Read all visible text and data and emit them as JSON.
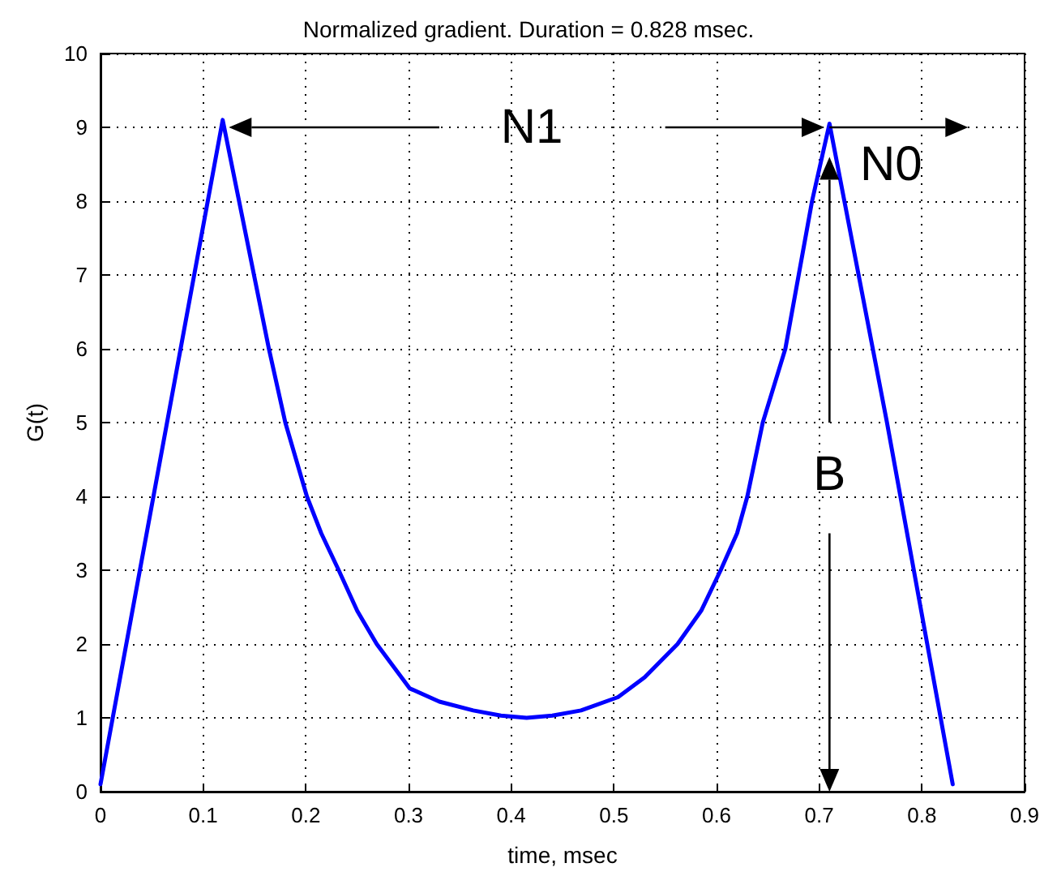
{
  "chart_data": {
    "type": "line",
    "title": "Normalized gradient. Duration = 0.828 msec.",
    "xlabel": "time, msec",
    "ylabel": "G(t)",
    "x": [
      0,
      0.119,
      0.164,
      0.18,
      0.201,
      0.215,
      0.232,
      0.25,
      0.269,
      0.285,
      0.301,
      0.33,
      0.363,
      0.39,
      0.415,
      0.44,
      0.468,
      0.504,
      0.53,
      0.562,
      0.585,
      0.604,
      0.62,
      0.63,
      0.645,
      0.667,
      0.68,
      0.693,
      0.71,
      0.766,
      0.83
    ],
    "series": [
      {
        "color": "#0000ff",
        "values": [
          0.1,
          9.1,
          6,
          5,
          4,
          3.5,
          3,
          2.45,
          2,
          1.7,
          1.4,
          1.22,
          1.1,
          1.03,
          1,
          1.03,
          1.1,
          1.28,
          1.55,
          2,
          2.45,
          3,
          3.5,
          4,
          5,
          6,
          7,
          8,
          9.05,
          5,
          0.1
        ]
      }
    ],
    "xlim": [
      0,
      0.9
    ],
    "xticks": [
      0,
      0.1,
      0.2,
      0.3,
      0.4,
      0.5,
      0.6,
      0.7,
      0.8,
      0.9
    ],
    "ylim": [
      0,
      10
    ],
    "yticks": [
      0,
      1,
      2,
      3,
      4,
      5,
      6,
      7,
      8,
      9,
      10
    ],
    "grid": true,
    "line_style": "solid",
    "marker": "none",
    "annotations": [
      "N1",
      "N0",
      "B"
    ]
  }
}
